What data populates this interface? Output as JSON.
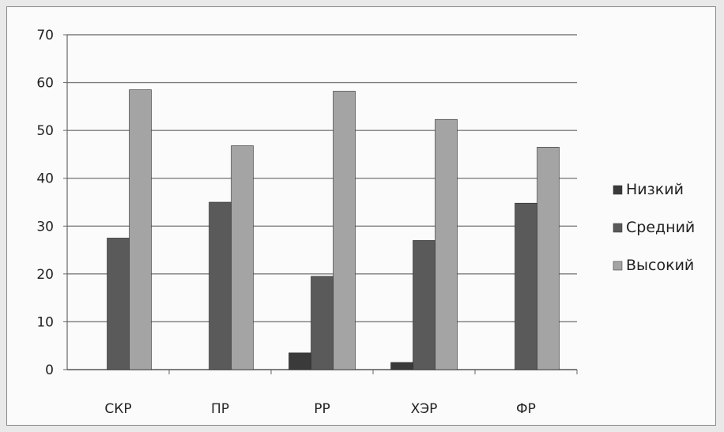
{
  "chart_data": {
    "type": "bar",
    "title": "",
    "xlabel": "",
    "ylabel": "",
    "categories": [
      "СКР",
      "ПР",
      "РР",
      "ХЭР",
      "ФР"
    ],
    "series": [
      {
        "name": "Низкий",
        "color": "#3a3a3a",
        "values": [
          0,
          0,
          3.5,
          1.5,
          0
        ]
      },
      {
        "name": "Средний",
        "color": "#5a5a5a",
        "values": [
          27.5,
          35,
          19.5,
          27,
          34.8
        ]
      },
      {
        "name": "Высокий",
        "color": "#a4a4a4",
        "values": [
          58.5,
          46.8,
          58.2,
          52.3,
          46.5
        ]
      }
    ],
    "ylim": [
      0,
      70
    ],
    "yticks": [
      0,
      10,
      20,
      30,
      40,
      50,
      60,
      70
    ],
    "grid": true,
    "legend_position": "right"
  }
}
